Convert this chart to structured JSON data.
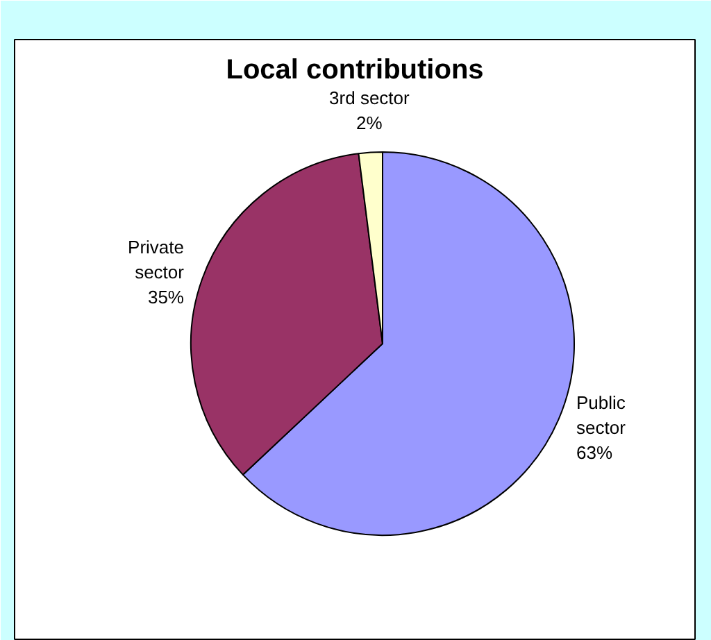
{
  "chart_data": {
    "type": "pie",
    "title": "Local contributions",
    "categories": [
      "Public sector",
      "Private sector",
      "3rd sector"
    ],
    "values": [
      63,
      35,
      2
    ],
    "value_labels": [
      "63%",
      "35%",
      "2%"
    ],
    "colors": [
      "#9999ff",
      "#993366",
      "#ffffcc"
    ]
  }
}
